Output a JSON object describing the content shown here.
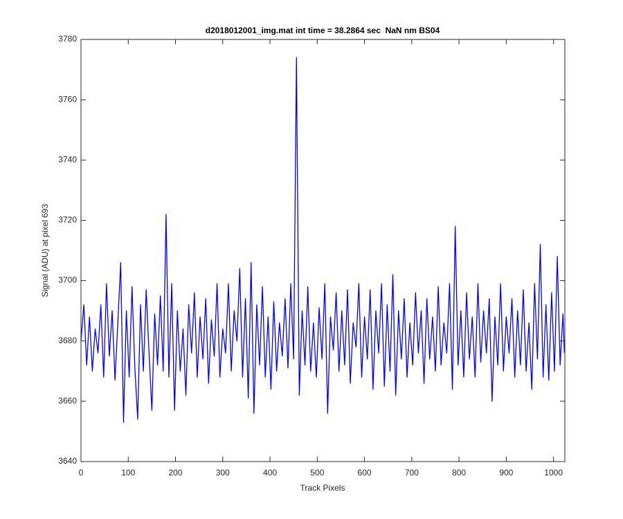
{
  "chart_data": {
    "type": "line",
    "title": "d2018012001_img.mat int time = 38.2864 sec  NaN nm BS04",
    "x_label": "Track Pixels",
    "y_label": "Signal (ADU) at pixel 693",
    "color": "#0000ff",
    "xlim": [
      0,
      1024
    ],
    "ylim": [
      3640,
      3780
    ],
    "xticks": [
      0,
      100,
      200,
      300,
      400,
      500,
      600,
      700,
      800,
      900,
      1000
    ],
    "yticks": [
      3640,
      3660,
      3680,
      3700,
      3720,
      3740,
      3760,
      3780
    ],
    "x": [
      0,
      6,
      12,
      18,
      24,
      30,
      36,
      42,
      48,
      54,
      60,
      66,
      72,
      78,
      84,
      90,
      96,
      102,
      108,
      114,
      120,
      126,
      132,
      138,
      144,
      150,
      156,
      162,
      168,
      174,
      180,
      186,
      192,
      198,
      204,
      210,
      216,
      222,
      228,
      234,
      240,
      246,
      252,
      258,
      264,
      270,
      276,
      282,
      288,
      294,
      300,
      306,
      312,
      318,
      324,
      330,
      336,
      342,
      348,
      354,
      360,
      366,
      372,
      378,
      384,
      390,
      396,
      402,
      408,
      414,
      420,
      426,
      432,
      438,
      444,
      450,
      456,
      462,
      468,
      474,
      480,
      486,
      492,
      498,
      504,
      510,
      516,
      522,
      528,
      534,
      540,
      546,
      552,
      558,
      564,
      570,
      576,
      582,
      588,
      594,
      600,
      606,
      612,
      618,
      624,
      630,
      636,
      642,
      648,
      654,
      660,
      666,
      672,
      678,
      684,
      690,
      696,
      702,
      708,
      714,
      720,
      726,
      732,
      738,
      744,
      750,
      756,
      762,
      768,
      774,
      780,
      786,
      792,
      798,
      804,
      810,
      816,
      822,
      828,
      834,
      840,
      846,
      852,
      858,
      864,
      870,
      876,
      882,
      888,
      894,
      900,
      906,
      912,
      918,
      924,
      930,
      936,
      942,
      948,
      954,
      960,
      966,
      972,
      978,
      984,
      990,
      996,
      1002,
      1008,
      1014,
      1020,
      1023
    ],
    "values": [
      3680,
      3692,
      3672,
      3688,
      3670,
      3684,
      3676,
      3692,
      3668,
      3699,
      3675,
      3690,
      3667,
      3686,
      3706,
      3653,
      3690,
      3668,
      3698,
      3671,
      3654,
      3692,
      3670,
      3697,
      3676,
      3657,
      3689,
      3672,
      3695,
      3670,
      3722,
      3668,
      3699,
      3657,
      3690,
      3670,
      3684,
      3662,
      3692,
      3676,
      3696,
      3668,
      3688,
      3674,
      3694,
      3666,
      3687,
      3675,
      3699,
      3668,
      3684,
      3676,
      3699,
      3670,
      3690,
      3680,
      3704,
      3668,
      3694,
      3661,
      3706,
      3656,
      3692,
      3672,
      3698,
      3668,
      3688,
      3664,
      3693,
      3670,
      3686,
      3675,
      3694,
      3671,
      3699,
      3674,
      3774,
      3662,
      3690,
      3672,
      3698,
      3670,
      3686,
      3668,
      3691,
      3674,
      3699,
      3656,
      3688,
      3677,
      3696,
      3670,
      3690,
      3672,
      3697,
      3666,
      3686,
      3678,
      3699,
      3668,
      3688,
      3674,
      3697,
      3664,
      3690,
      3676,
      3699,
      3665,
      3692,
      3670,
      3702,
      3662,
      3690,
      3674,
      3694,
      3668,
      3686,
      3672,
      3696,
      3676,
      3690,
      3666,
      3694,
      3674,
      3688,
      3670,
      3698,
      3672,
      3686,
      3676,
      3699,
      3664,
      3718,
      3672,
      3690,
      3668,
      3696,
      3674,
      3688,
      3668,
      3699,
      3673,
      3690,
      3676,
      3694,
      3660,
      3688,
      3672,
      3699,
      3670,
      3688,
      3676,
      3694,
      3668,
      3690,
      3672,
      3697,
      3670,
      3686,
      3664,
      3699,
      3674,
      3712,
      3668,
      3692,
      3667,
      3696,
      3670,
      3708,
      3672,
      3689,
      3676
    ]
  }
}
